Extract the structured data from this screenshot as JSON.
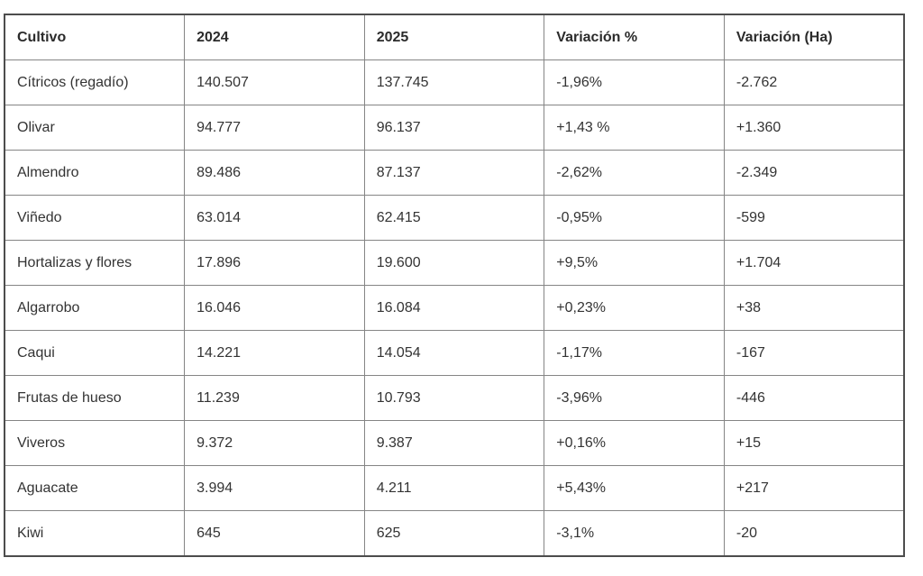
{
  "colors": {
    "background": "#ffffff",
    "outer_border": "#4d4d4d",
    "inner_border": "#858585",
    "text": "#333333"
  },
  "chart_data": {
    "type": "table",
    "columns": [
      "Cultivo",
      "2024",
      "2025",
      "Variación %",
      "Variación (Ha)"
    ],
    "rows": [
      [
        "Cítricos (regadío)",
        "140.507",
        "137.745",
        "-1,96%",
        "-2.762"
      ],
      [
        "Olivar",
        "94.777",
        "96.137",
        "+1,43 %",
        "+1.360"
      ],
      [
        "Almendro",
        "89.486",
        "87.137",
        "-2,62%",
        "-2.349"
      ],
      [
        "Viñedo",
        "63.014",
        "62.415",
        "-0,95%",
        "-599"
      ],
      [
        "Hortalizas y flores",
        "17.896",
        "19.600",
        "+9,5%",
        "+1.704"
      ],
      [
        "Algarrobo",
        "16.046",
        "16.084",
        "+0,23%",
        "+38"
      ],
      [
        "Caqui",
        "14.221",
        "14.054",
        "-1,17%",
        "-167"
      ],
      [
        "Frutas de hueso",
        "11.239",
        "10.793",
        "-3,96%",
        "-446"
      ],
      [
        "Viveros",
        "9.372",
        "9.387",
        "+0,16%",
        "+15"
      ],
      [
        "Aguacate",
        "3.994",
        "4.211",
        "+5,43%",
        "+217"
      ],
      [
        "Kiwi",
        "645",
        "625",
        "-3,1%",
        "-20"
      ]
    ]
  }
}
